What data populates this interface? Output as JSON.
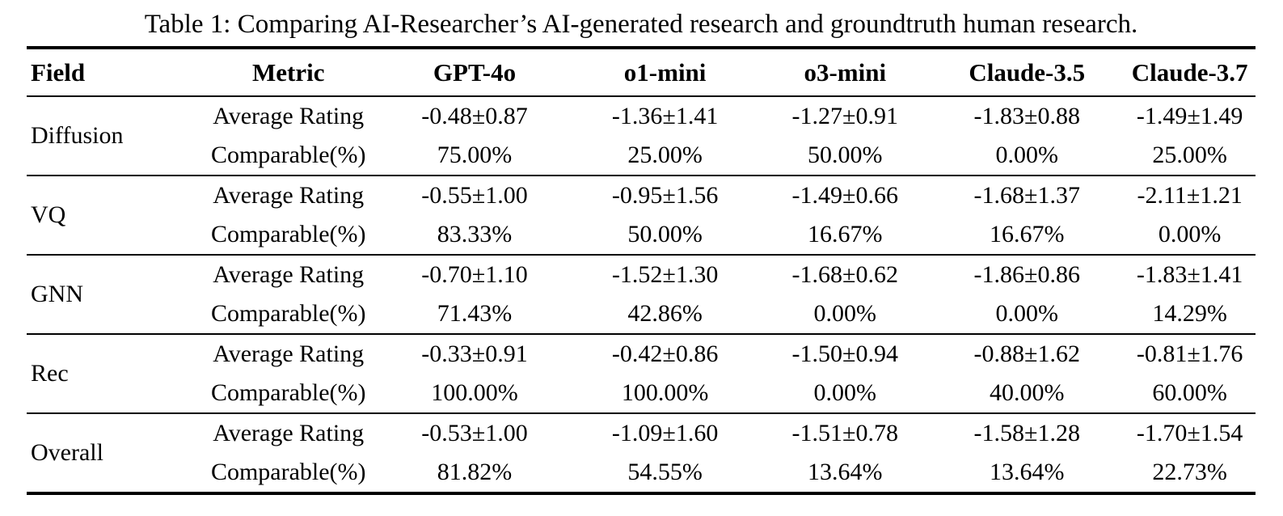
{
  "caption": "Table 1: Comparing AI-Researcher’s AI-generated research and groundtruth human research.",
  "colors": {
    "text": "#000000",
    "background": "#ffffff",
    "rule": "#000000"
  },
  "table": {
    "columns": [
      "Field",
      "Metric",
      "GPT-4o",
      "o1-mini",
      "o3-mini",
      "Claude-3.5",
      "Claude-3.7"
    ],
    "metric_labels": [
      "Average Rating",
      "Comparable(%)"
    ],
    "rows": [
      {
        "field": "Diffusion",
        "avg": [
          "-0.48±0.87",
          "-1.36±1.41",
          "-1.27±0.91",
          "-1.83±0.88",
          "-1.49±1.49"
        ],
        "comp": [
          "75.00%",
          "25.00%",
          "50.00%",
          "0.00%",
          "25.00%"
        ]
      },
      {
        "field": "VQ",
        "avg": [
          "-0.55±1.00",
          "-0.95±1.56",
          "-1.49±0.66",
          "-1.68±1.37",
          "-2.11±1.21"
        ],
        "comp": [
          "83.33%",
          "50.00%",
          "16.67%",
          "16.67%",
          "0.00%"
        ]
      },
      {
        "field": "GNN",
        "avg": [
          "-0.70±1.10",
          "-1.52±1.30",
          "-1.68±0.62",
          "-1.86±0.86",
          "-1.83±1.41"
        ],
        "comp": [
          "71.43%",
          "42.86%",
          "0.00%",
          "0.00%",
          "14.29%"
        ]
      },
      {
        "field": "Rec",
        "avg": [
          "-0.33±0.91",
          "-0.42±0.86",
          "-1.50±0.94",
          "-0.88±1.62",
          "-0.81±1.76"
        ],
        "comp": [
          "100.00%",
          "100.00%",
          "0.00%",
          "40.00%",
          "60.00%"
        ]
      },
      {
        "field": "Overall",
        "avg": [
          "-0.53±1.00",
          "-1.09±1.60",
          "-1.51±0.78",
          "-1.58±1.28",
          "-1.70±1.54"
        ],
        "comp": [
          "81.82%",
          "54.55%",
          "13.64%",
          "13.64%",
          "22.73%"
        ]
      }
    ]
  }
}
